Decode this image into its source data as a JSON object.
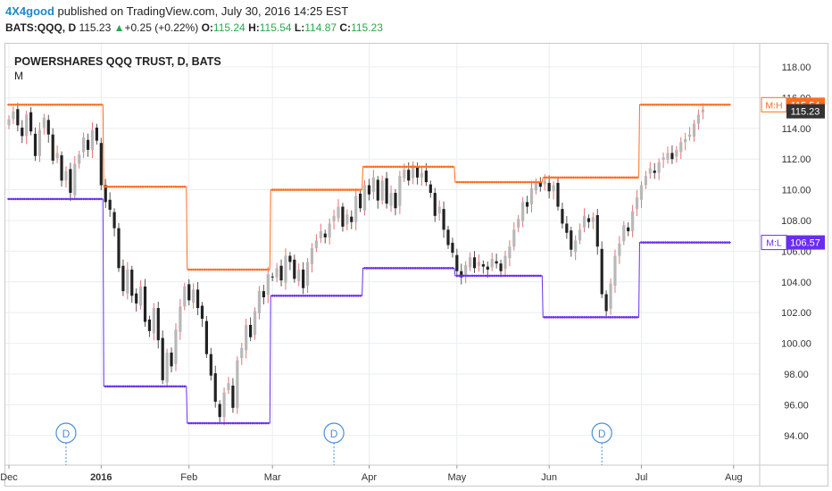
{
  "header": {
    "author": "4X4good",
    "published_text": "published on TradingView.com, July 30, 2016 14:25 EST",
    "symbol": "BATS:QQQ, D",
    "last": "115.23",
    "change_arrow": "▲",
    "change": "+0.25 (+0.22%)",
    "o_label": "O:",
    "o_val": "115.24",
    "h_label": "H:",
    "h_val": "115.54",
    "l_label": "L:",
    "l_val": "114.87",
    "c_label": "C:",
    "c_val": "115.23"
  },
  "colors": {
    "up_candle": "#b8b8b8",
    "down_candle": "#222222",
    "wick_up": "#e57373",
    "high_line": "#ff6d1f",
    "low_line": "#6a2df0",
    "grid": "#e9edf2",
    "axis_text": "#333333"
  },
  "chart_data": {
    "type": "candlestick",
    "title": "POWERSHARES QQQ TRUST, D, BATS",
    "subtitle": "M",
    "ylim": [
      92.5,
      119.5
    ],
    "y_ticks": [
      "118.00",
      "116.00",
      "114.00",
      "112.00",
      "110.00",
      "108.00",
      "106.00",
      "104.00",
      "102.00",
      "100.00",
      "98.00",
      "96.00",
      "94.00"
    ],
    "x_ticks": [
      {
        "label": "Dec",
        "d": 0
      },
      {
        "label": "2016",
        "d": 21
      },
      {
        "label": "Feb",
        "d": 41
      },
      {
        "label": "Mar",
        "d": 60
      },
      {
        "label": "Apr",
        "d": 82
      },
      {
        "label": "May",
        "d": 102
      },
      {
        "label": "Jun",
        "d": 123
      },
      {
        "label": "Jul",
        "d": 144
      },
      {
        "label": "Aug",
        "d": 165
      }
    ],
    "x_tick_bold": [
      "2016"
    ],
    "high_level": {
      "name": "M:H",
      "segments": [
        {
          "from": 0,
          "to": 21,
          "value": 115.54
        },
        {
          "from": 22,
          "to": 40,
          "value": 110.2
        },
        {
          "from": 41,
          "to": 59,
          "value": 104.8
        },
        {
          "from": 60,
          "to": 80,
          "value": 110.0
        },
        {
          "from": 81,
          "to": 101,
          "value": 111.5
        },
        {
          "from": 102,
          "to": 121,
          "value": 110.5
        },
        {
          "from": 122,
          "to": 143,
          "value": 110.8
        },
        {
          "from": 144,
          "to": 164,
          "value": 115.54
        }
      ],
      "label_value": "115.54"
    },
    "low_level": {
      "name": "M:L",
      "segments": [
        {
          "from": 0,
          "to": 21,
          "value": 109.4
        },
        {
          "from": 22,
          "to": 40,
          "value": 97.2
        },
        {
          "from": 41,
          "to": 59,
          "value": 94.8
        },
        {
          "from": 60,
          "to": 80,
          "value": 103.1
        },
        {
          "from": 81,
          "to": 101,
          "value": 104.9
        },
        {
          "from": 102,
          "to": 121,
          "value": 104.4
        },
        {
          "from": 122,
          "to": 143,
          "value": 101.7
        },
        {
          "from": 144,
          "to": 164,
          "value": 106.57
        }
      ],
      "label_value": "106.57"
    },
    "last_price": "115.23",
    "dividend_markers": [
      {
        "label": "D",
        "d": 13
      },
      {
        "label": "D",
        "d": 74
      },
      {
        "label": "D",
        "d": 135
      }
    ],
    "closes": [
      114.6,
      115.1,
      114.2,
      113.5,
      114.9,
      113.8,
      112.2,
      113.9,
      114.7,
      113.6,
      111.9,
      112.4,
      110.6,
      111.2,
      109.8,
      111.7,
      112.3,
      113.4,
      112.6,
      113.9,
      113.2,
      110.3,
      109.2,
      108.7,
      107.5,
      104.9,
      103.4,
      104.8,
      103.1,
      102.6,
      103.7,
      101.4,
      100.8,
      102.3,
      100.2,
      97.6,
      99.4,
      98.5,
      100.9,
      102.4,
      103.7,
      102.8,
      103.5,
      102.3,
      101.6,
      99.3,
      97.9,
      96.2,
      95.2,
      96.8,
      97.4,
      95.8,
      98.9,
      99.7,
      101.2,
      100.4,
      102.1,
      103.4,
      103.0,
      104.5,
      104.3,
      104.9,
      104.1,
      105.7,
      105.3,
      104.2,
      104.8,
      103.6,
      105.3,
      106.2,
      106.7,
      107.3,
      106.9,
      107.8,
      108.3,
      108.9,
      107.6,
      108.4,
      107.9,
      109.6,
      108.8,
      110.3,
      109.7,
      110.8,
      109.3,
      110.6,
      109.1,
      109.8,
      108.8,
      110.9,
      111.3,
      110.6,
      111.6,
      110.8,
      111.1,
      110.5,
      109.8,
      108.3,
      108.9,
      107.4,
      106.4,
      105.9,
      104.7,
      104.3,
      105.1,
      105.6,
      104.9,
      105.3,
      105.0,
      104.8,
      105.5,
      105.2,
      104.7,
      105.7,
      106.3,
      107.4,
      108.1,
      109.2,
      108.9,
      110.1,
      110.5,
      110.2,
      110.6,
      109.9,
      110.3,
      108.9,
      107.8,
      107.2,
      106.1,
      106.7,
      107.4,
      108.3,
      107.9,
      108.2,
      106.3,
      103.2,
      102.1,
      103.9,
      105.7,
      106.5,
      107.7,
      107.3,
      108.6,
      109.5,
      110.3,
      110.9,
      111.4,
      111.1,
      111.8,
      112.1,
      112.4,
      112.0,
      112.6,
      113.1,
      113.3,
      113.6,
      114.3,
      114.9,
      115.23
    ]
  }
}
